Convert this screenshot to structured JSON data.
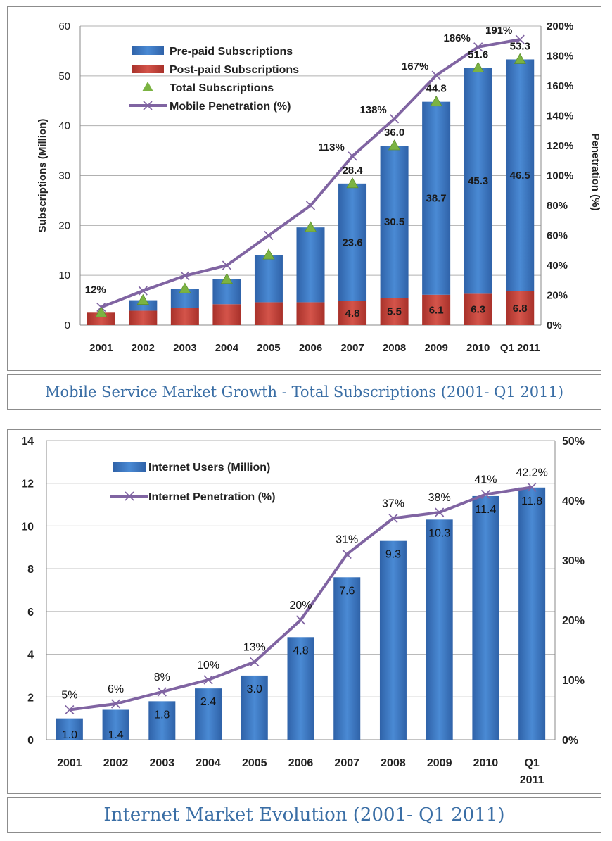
{
  "charts": [
    {
      "type": "bar",
      "stacked": true,
      "categories": [
        "2001",
        "2002",
        "2003",
        "2004",
        "2005",
        "2006",
        "2007",
        "2008",
        "2009",
        "2010",
        "Q1 2011"
      ],
      "series": [
        {
          "name": "Post-paid Subscriptions",
          "type": "bar",
          "color": "#c0392b",
          "values": [
            2.5,
            2.9,
            3.4,
            4.2,
            4.6,
            4.6,
            4.8,
            5.5,
            6.1,
            6.3,
            6.8
          ],
          "labels": [
            "",
            "",
            "",
            "",
            "",
            "",
            "4.8",
            "5.5",
            "6.1",
            "6.3",
            "6.8"
          ]
        },
        {
          "name": "Pre-paid Subscriptions",
          "type": "bar",
          "color": "#3a76c3",
          "values": [
            0,
            2.1,
            3.9,
            5.0,
            9.5,
            15.0,
            23.6,
            30.5,
            38.7,
            45.3,
            46.5
          ],
          "labels": [
            "",
            "",
            "",
            "",
            "",
            "",
            "23.6",
            "30.5",
            "38.7",
            "45.3",
            "46.5"
          ]
        },
        {
          "name": "Total Subscriptions",
          "type": "marker",
          "color": "#7bb342",
          "values": [
            2.5,
            5.0,
            7.3,
            9.2,
            14.1,
            19.6,
            28.4,
            36.0,
            44.8,
            51.6,
            53.3
          ],
          "labels": [
            "",
            "",
            "",
            "",
            "",
            "",
            "28.4",
            "36.0",
            "44.8",
            "51.6",
            "53.3"
          ]
        },
        {
          "name": "Mobile Penetration (%)",
          "type": "line",
          "axis": "right",
          "color": "#8064a2",
          "values": [
            12,
            23,
            33,
            40,
            60,
            80,
            113,
            138,
            167,
            186,
            191
          ],
          "labels": [
            "12%",
            "",
            "",
            "",
            "",
            "",
            "113%",
            "138%",
            "167%",
            "186%",
            "191%"
          ]
        }
      ],
      "ylabel": "Subscriptions (Million)",
      "y2label": "Penetration (%)",
      "ylim": [
        0,
        60
      ],
      "yticks": [
        "0",
        "10",
        "20",
        "30",
        "40",
        "50",
        "60"
      ],
      "y2lim": [
        0,
        200
      ],
      "y2ticks": [
        "0%",
        "20%",
        "40%",
        "60%",
        "80%",
        "100%",
        "120%",
        "140%",
        "160%",
        "180%",
        "200%"
      ],
      "grid": true,
      "legend": "top-left",
      "caption": "Mobile Service Market Growth - Total Subscriptions (2001- Q1 2011)"
    },
    {
      "type": "bar",
      "categories": [
        "2001",
        "2002",
        "2003",
        "2004",
        "2005",
        "2006",
        "2007",
        "2008",
        "2009",
        "2010",
        "Q1 2011"
      ],
      "series": [
        {
          "name": "Internet Users (Million)",
          "type": "bar",
          "color": "#3a76c3",
          "values": [
            1.0,
            1.4,
            1.8,
            2.4,
            3.0,
            4.8,
            7.6,
            9.3,
            10.3,
            11.4,
            11.8
          ],
          "labels": [
            "1.0",
            "1.4",
            "1.8",
            "2.4",
            "3.0",
            "4.8",
            "7.6",
            "9.3",
            "10.3",
            "11.4",
            "11.8"
          ]
        },
        {
          "name": "Internet Penetration (%)",
          "type": "line",
          "axis": "right",
          "color": "#8064a2",
          "values": [
            5,
            6,
            8,
            10,
            13,
            20,
            31,
            37,
            38,
            41,
            42.2
          ],
          "labels": [
            "5%",
            "6%",
            "8%",
            "10%",
            "13%",
            "20%",
            "31%",
            "37%",
            "38%",
            "41%",
            "42.2%"
          ]
        }
      ],
      "ylim": [
        0,
        14
      ],
      "yticks": [
        "0",
        "2",
        "4",
        "6",
        "8",
        "10",
        "12",
        "14"
      ],
      "y2lim": [
        0,
        50
      ],
      "y2ticks": [
        "0%",
        "10%",
        "20%",
        "30%",
        "40%",
        "50%"
      ],
      "grid": true,
      "legend": "top-left",
      "caption": "Internet Market Evolution (2001- Q1 2011)"
    }
  ]
}
